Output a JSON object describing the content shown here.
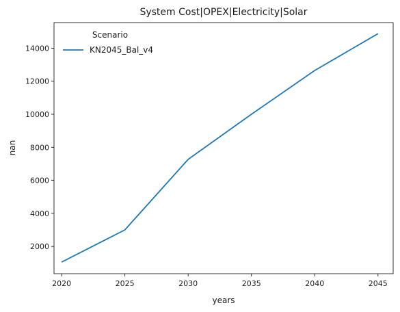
{
  "chart_data": {
    "type": "line",
    "title": "System Cost|OPEX|Electricity|Solar",
    "xlabel": "years",
    "ylabel": "nan",
    "x": [
      2020,
      2025,
      2030,
      2035,
      2040,
      2045
    ],
    "xticks": [
      "2020",
      "2025",
      "2030",
      "2035",
      "2040",
      "2045"
    ],
    "yticks": [
      "2000",
      "4000",
      "6000",
      "8000",
      "10000",
      "12000",
      "14000"
    ],
    "xlim": [
      2019.4,
      2046.2
    ],
    "ylim": [
      350,
      15550
    ],
    "grid": false,
    "legend": {
      "title": "Scenario",
      "placement": "top-left"
    },
    "series": [
      {
        "name": "KN2045_Bal_v4",
        "color": "#1f77b4",
        "values": [
          1050,
          3000,
          7270,
          10000,
          12650,
          14880
        ]
      }
    ]
  }
}
